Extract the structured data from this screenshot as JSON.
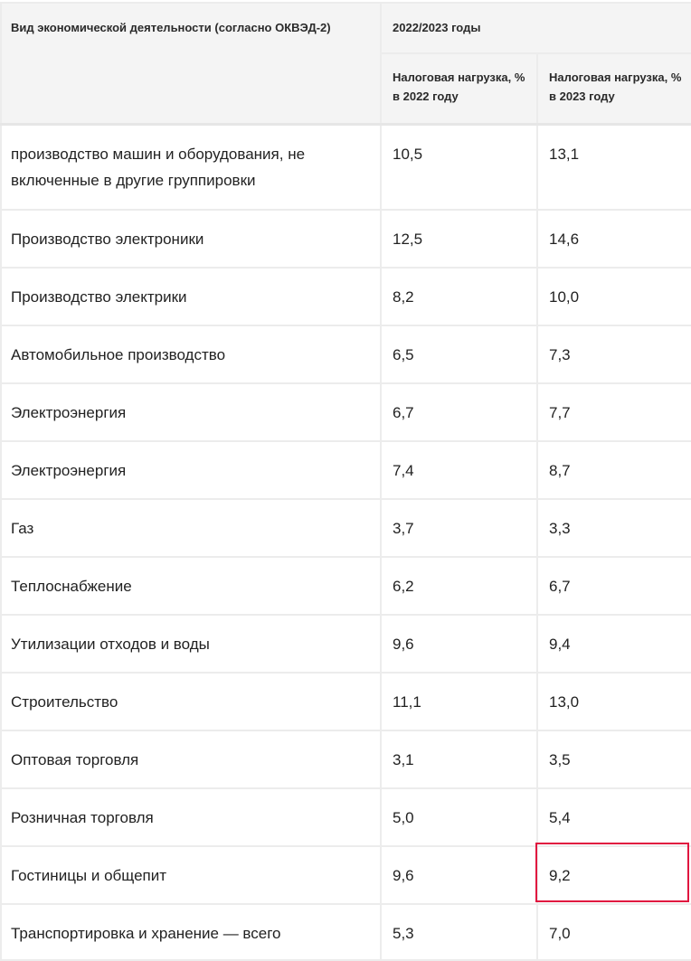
{
  "table": {
    "header": {
      "activity": "Вид экономической деятельности (согласно ОКВЭД-2)",
      "period": "2022/2023 годы",
      "col_2022": "Налоговая нагрузка, % в 2022 году",
      "col_2023": "Налоговая нагрузка, % в 2023 году"
    },
    "rows": [
      {
        "activity": "производство машин и оборудования, не включенные в другие группировки",
        "v2022": "10,5",
        "v2023": "13,1"
      },
      {
        "activity": "Производство электроники",
        "v2022": "12,5",
        "v2023": "14,6"
      },
      {
        "activity": "Производство электрики",
        "v2022": "8,2",
        "v2023": "10,0"
      },
      {
        "activity": "Автомобильное производство",
        "v2022": "6,5",
        "v2023": "7,3"
      },
      {
        "activity": "Электроэнергия",
        "v2022": "6,7",
        "v2023": "7,7"
      },
      {
        "activity": "Электроэнергия",
        "v2022": "7,4",
        "v2023": "8,7"
      },
      {
        "activity": "Газ",
        "v2022": "3,7",
        "v2023": "3,3"
      },
      {
        "activity": "Теплоснабжение",
        "v2022": "6,2",
        "v2023": "6,7"
      },
      {
        "activity": "Утилизации отходов и воды",
        "v2022": "9,6",
        "v2023": "9,4"
      },
      {
        "activity": "Строительство",
        "v2022": "11,1",
        "v2023": "13,0"
      },
      {
        "activity": "Оптовая торговля",
        "v2022": "3,1",
        "v2023": "3,5"
      },
      {
        "activity": "Розничная торговля",
        "v2022": "5,0",
        "v2023": "5,4"
      },
      {
        "activity": "Гостиницы и общепит",
        "v2022": "9,6",
        "v2023": "9,2"
      },
      {
        "activity": "Транспортировка и хранение — всего",
        "v2022": "5,3",
        "v2023": "7,0"
      }
    ]
  },
  "highlight": {
    "row_index": 12,
    "column": "v2023",
    "color": "#e0163f"
  }
}
